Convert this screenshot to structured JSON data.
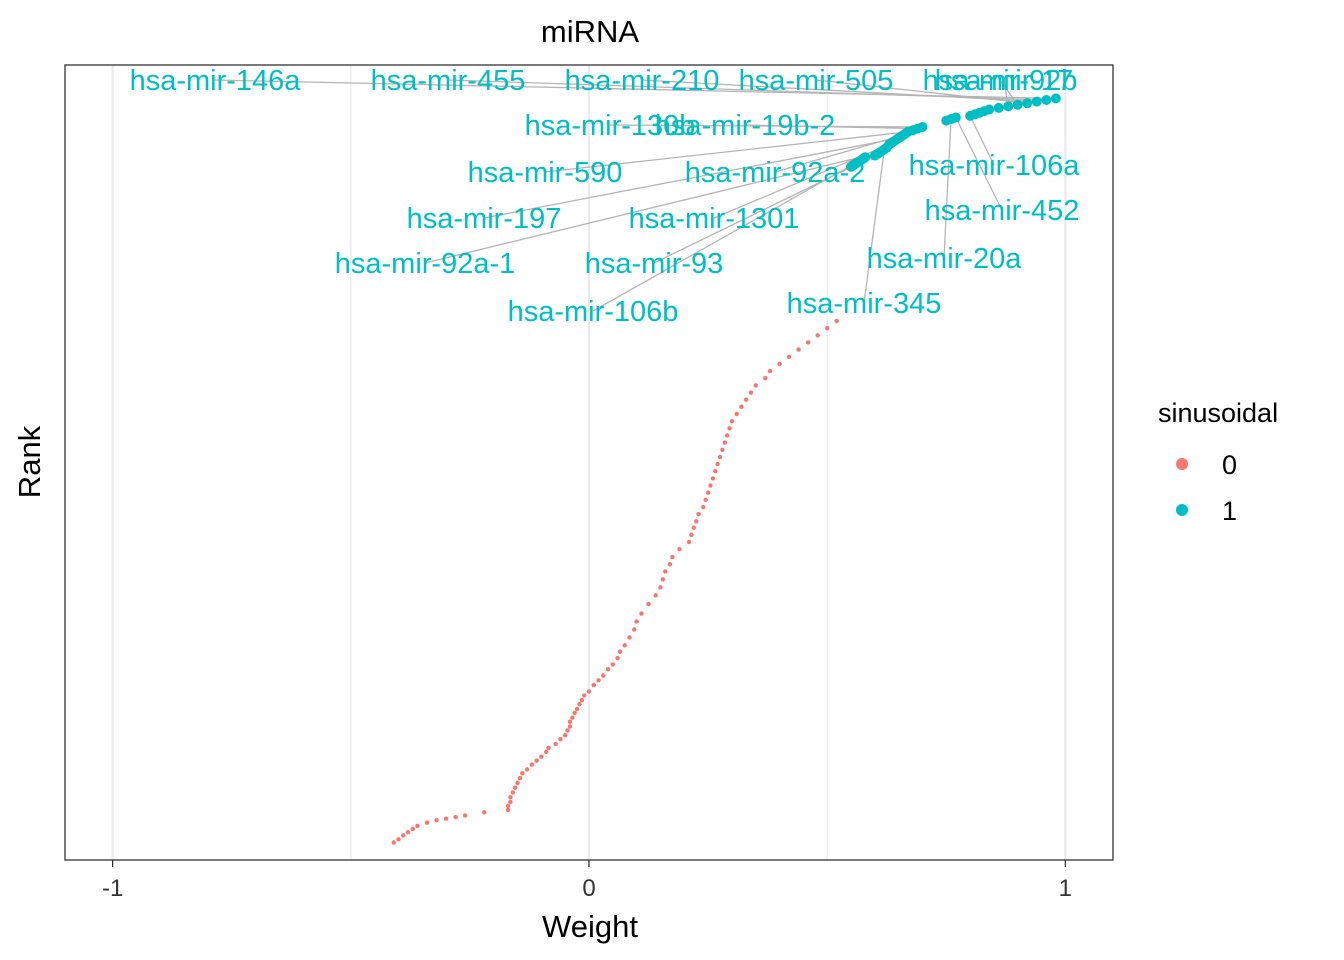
{
  "chart_data": {
    "type": "scatter",
    "title": "miRNA",
    "xlabel": "Weight",
    "ylabel": "Rank",
    "xlim": [
      -1.1,
      1.1
    ],
    "x_ticks": [
      -1,
      0,
      1
    ],
    "x_tick_labels": [
      "-1",
      "0",
      "1"
    ],
    "y_ticks_shown": false,
    "grid": "vertical major and minor lines",
    "legend": {
      "title": "sinusoidal",
      "position": "right",
      "entries": [
        {
          "label": "0",
          "color": "#F8766D"
        },
        {
          "label": "1",
          "color": "#00BFC4"
        }
      ]
    },
    "series": [
      {
        "name": "0",
        "color": "#F8766D",
        "points": [
          [
            -0.41,
            0.022
          ],
          [
            -0.4,
            0.026
          ],
          [
            -0.39,
            0.031
          ],
          [
            -0.38,
            0.035
          ],
          [
            -0.37,
            0.039
          ],
          [
            -0.36,
            0.043
          ],
          [
            -0.34,
            0.047
          ],
          [
            -0.32,
            0.05
          ],
          [
            -0.3,
            0.052
          ],
          [
            -0.28,
            0.054
          ],
          [
            -0.26,
            0.056
          ],
          [
            -0.22,
            0.06
          ],
          [
            -0.17,
            0.063
          ],
          [
            -0.17,
            0.068
          ],
          [
            -0.165,
            0.073
          ],
          [
            -0.165,
            0.079
          ],
          [
            -0.16,
            0.085
          ],
          [
            -0.155,
            0.091
          ],
          [
            -0.15,
            0.097
          ],
          [
            -0.145,
            0.103
          ],
          [
            -0.14,
            0.109
          ],
          [
            -0.13,
            0.114
          ],
          [
            -0.12,
            0.12
          ],
          [
            -0.11,
            0.125
          ],
          [
            -0.1,
            0.13
          ],
          [
            -0.09,
            0.136
          ],
          [
            -0.085,
            0.141
          ],
          [
            -0.07,
            0.146
          ],
          [
            -0.06,
            0.152
          ],
          [
            -0.05,
            0.157
          ],
          [
            -0.045,
            0.163
          ],
          [
            -0.04,
            0.168
          ],
          [
            -0.04,
            0.174
          ],
          [
            -0.035,
            0.179
          ],
          [
            -0.03,
            0.185
          ],
          [
            -0.025,
            0.19
          ],
          [
            -0.02,
            0.196
          ],
          [
            -0.015,
            0.201
          ],
          [
            -0.01,
            0.207
          ],
          [
            0,
            0.212
          ],
          [
            0.01,
            0.22
          ],
          [
            0.02,
            0.226
          ],
          [
            0.03,
            0.232
          ],
          [
            0.04,
            0.24
          ],
          [
            0.05,
            0.246
          ],
          [
            0.06,
            0.254
          ],
          [
            0.065,
            0.262
          ],
          [
            0.075,
            0.27
          ],
          [
            0.085,
            0.28
          ],
          [
            0.095,
            0.29
          ],
          [
            0.1,
            0.3
          ],
          [
            0.11,
            0.31
          ],
          [
            0.125,
            0.322
          ],
          [
            0.14,
            0.333
          ],
          [
            0.15,
            0.343
          ],
          [
            0.155,
            0.353
          ],
          [
            0.16,
            0.363
          ],
          [
            0.17,
            0.372
          ],
          [
            0.175,
            0.381
          ],
          [
            0.19,
            0.391
          ],
          [
            0.21,
            0.4
          ],
          [
            0.215,
            0.409
          ],
          [
            0.22,
            0.418
          ],
          [
            0.225,
            0.426
          ],
          [
            0.23,
            0.435
          ],
          [
            0.24,
            0.444
          ],
          [
            0.245,
            0.453
          ],
          [
            0.25,
            0.462
          ],
          [
            0.255,
            0.471
          ],
          [
            0.26,
            0.48
          ],
          [
            0.265,
            0.489
          ],
          [
            0.27,
            0.498
          ],
          [
            0.275,
            0.507
          ],
          [
            0.28,
            0.516
          ],
          [
            0.285,
            0.525
          ],
          [
            0.29,
            0.534
          ],
          [
            0.295,
            0.543
          ],
          [
            0.3,
            0.552
          ],
          [
            0.31,
            0.561
          ],
          [
            0.32,
            0.57
          ],
          [
            0.33,
            0.579
          ],
          [
            0.34,
            0.588
          ],
          [
            0.35,
            0.597
          ],
          [
            0.37,
            0.606
          ],
          [
            0.38,
            0.615
          ],
          [
            0.4,
            0.624
          ],
          [
            0.42,
            0.633
          ],
          [
            0.44,
            0.642
          ],
          [
            0.46,
            0.651
          ],
          [
            0.48,
            0.66
          ],
          [
            0.5,
            0.669
          ],
          [
            0.52,
            0.678
          ]
        ]
      },
      {
        "name": "1",
        "color": "#00BFC4",
        "points": [
          [
            0.55,
            0.872
          ],
          [
            0.555,
            0.874
          ],
          [
            0.56,
            0.876
          ],
          [
            0.565,
            0.878
          ],
          [
            0.57,
            0.88
          ],
          [
            0.575,
            0.882
          ],
          [
            0.58,
            0.884
          ],
          [
            0.6,
            0.886
          ],
          [
            0.605,
            0.888
          ],
          [
            0.61,
            0.89
          ],
          [
            0.615,
            0.892
          ],
          [
            0.62,
            0.894
          ],
          [
            0.625,
            0.896
          ],
          [
            0.63,
            0.9
          ],
          [
            0.635,
            0.902
          ],
          [
            0.64,
            0.904
          ],
          [
            0.645,
            0.906
          ],
          [
            0.65,
            0.908
          ],
          [
            0.655,
            0.91
          ],
          [
            0.66,
            0.912
          ],
          [
            0.665,
            0.914
          ],
          [
            0.67,
            0.916
          ],
          [
            0.68,
            0.918
          ],
          [
            0.69,
            0.92
          ],
          [
            0.7,
            0.922
          ],
          [
            0.75,
            0.93
          ],
          [
            0.76,
            0.932
          ],
          [
            0.77,
            0.934
          ],
          [
            0.8,
            0.936
          ],
          [
            0.81,
            0.938
          ],
          [
            0.82,
            0.94
          ],
          [
            0.83,
            0.942
          ],
          [
            0.84,
            0.944
          ],
          [
            0.86,
            0.946
          ],
          [
            0.88,
            0.948
          ],
          [
            0.9,
            0.95
          ],
          [
            0.92,
            0.952
          ],
          [
            0.94,
            0.954
          ],
          [
            0.96,
            0.956
          ],
          [
            0.98,
            0.958
          ]
        ],
        "labels": [
          {
            "text": "hsa-mir-146a",
            "x": 0.98,
            "y": 0.958
          },
          {
            "text": "hsa-mir-455",
            "x": 0.96,
            "y": 0.956
          },
          {
            "text": "hsa-mir-210",
            "x": 0.94,
            "y": 0.954
          },
          {
            "text": "hsa-mir-505",
            "x": 0.92,
            "y": 0.952
          },
          {
            "text": "hsa-mir-92b",
            "x": 0.9,
            "y": 0.95
          },
          {
            "text": "hsa-mir-17",
            "x": 0.88,
            "y": 0.948
          },
          {
            "text": "hsa-mir-130b",
            "x": 0.7,
            "y": 0.922
          },
          {
            "text": "hsa-mir-19b-2",
            "x": 0.69,
            "y": 0.92
          },
          {
            "text": "hsa-mir-106a",
            "x": 0.8,
            "y": 0.936
          },
          {
            "text": "hsa-mir-590",
            "x": 0.67,
            "y": 0.916
          },
          {
            "text": "hsa-mir-92a-2",
            "x": 0.66,
            "y": 0.912
          },
          {
            "text": "hsa-mir-452",
            "x": 0.77,
            "y": 0.934
          },
          {
            "text": "hsa-mir-197",
            "x": 0.65,
            "y": 0.908
          },
          {
            "text": "hsa-mir-1301",
            "x": 0.63,
            "y": 0.9
          },
          {
            "text": "hsa-mir-20a",
            "x": 0.76,
            "y": 0.932
          },
          {
            "text": "hsa-mir-92a-1",
            "x": 0.61,
            "y": 0.89
          },
          {
            "text": "hsa-mir-93",
            "x": 0.6,
            "y": 0.886
          },
          {
            "text": "hsa-mir-345",
            "x": 0.62,
            "y": 0.894
          },
          {
            "text": "hsa-mir-106b",
            "x": 0.575,
            "y": 0.882
          }
        ]
      }
    ]
  }
}
